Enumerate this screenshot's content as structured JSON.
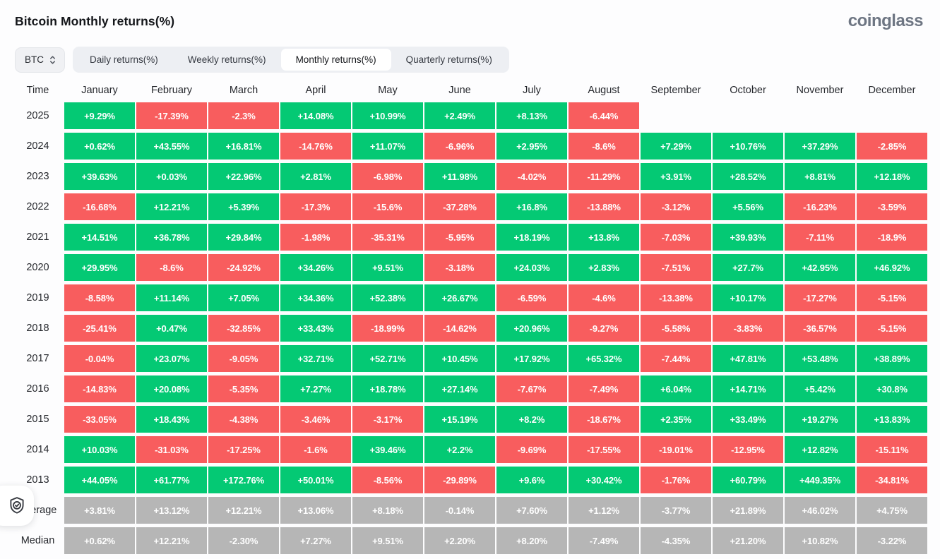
{
  "page": {
    "title": "Bitcoin Monthly returns(%)",
    "logo": "coinglass"
  },
  "toolbar": {
    "symbol_select": {
      "value": "BTC",
      "icon": "unfold-updown-chevron"
    },
    "tabs": [
      {
        "label": "Daily returns(%)",
        "active": false
      },
      {
        "label": "Weekly returns(%)",
        "active": false
      },
      {
        "label": "Monthly returns(%)",
        "active": true
      },
      {
        "label": "Quarterly returns(%)",
        "active": false
      }
    ]
  },
  "colors": {
    "positive": "#04c974",
    "negative": "#f85d5e",
    "neutral": "#b6b6b6"
  },
  "table": {
    "time_header": "Time",
    "months": [
      "January",
      "February",
      "March",
      "April",
      "May",
      "June",
      "July",
      "August",
      "September",
      "October",
      "November",
      "December"
    ],
    "rows": [
      {
        "label": "2025",
        "summary": false,
        "values": [
          "+9.29%",
          "-17.39%",
          "-2.3%",
          "+14.08%",
          "+10.99%",
          "+2.49%",
          "+8.13%",
          "-6.44%"
        ]
      },
      {
        "label": "2024",
        "summary": false,
        "values": [
          "+0.62%",
          "+43.55%",
          "+16.81%",
          "-14.76%",
          "+11.07%",
          "-6.96%",
          "+2.95%",
          "-8.6%",
          "+7.29%",
          "+10.76%",
          "+37.29%",
          "-2.85%"
        ]
      },
      {
        "label": "2023",
        "summary": false,
        "values": [
          "+39.63%",
          "+0.03%",
          "+22.96%",
          "+2.81%",
          "-6.98%",
          "+11.98%",
          "-4.02%",
          "-11.29%",
          "+3.91%",
          "+28.52%",
          "+8.81%",
          "+12.18%"
        ]
      },
      {
        "label": "2022",
        "summary": false,
        "values": [
          "-16.68%",
          "+12.21%",
          "+5.39%",
          "-17.3%",
          "-15.6%",
          "-37.28%",
          "+16.8%",
          "-13.88%",
          "-3.12%",
          "+5.56%",
          "-16.23%",
          "-3.59%"
        ]
      },
      {
        "label": "2021",
        "summary": false,
        "values": [
          "+14.51%",
          "+36.78%",
          "+29.84%",
          "-1.98%",
          "-35.31%",
          "-5.95%",
          "+18.19%",
          "+13.8%",
          "-7.03%",
          "+39.93%",
          "-7.11%",
          "-18.9%"
        ]
      },
      {
        "label": "2020",
        "summary": false,
        "values": [
          "+29.95%",
          "-8.6%",
          "-24.92%",
          "+34.26%",
          "+9.51%",
          "-3.18%",
          "+24.03%",
          "+2.83%",
          "-7.51%",
          "+27.7%",
          "+42.95%",
          "+46.92%"
        ]
      },
      {
        "label": "2019",
        "summary": false,
        "values": [
          "-8.58%",
          "+11.14%",
          "+7.05%",
          "+34.36%",
          "+52.38%",
          "+26.67%",
          "-6.59%",
          "-4.6%",
          "-13.38%",
          "+10.17%",
          "-17.27%",
          "-5.15%"
        ]
      },
      {
        "label": "2018",
        "summary": false,
        "values": [
          "-25.41%",
          "+0.47%",
          "-32.85%",
          "+33.43%",
          "-18.99%",
          "-14.62%",
          "+20.96%",
          "-9.27%",
          "-5.58%",
          "-3.83%",
          "-36.57%",
          "-5.15%"
        ]
      },
      {
        "label": "2017",
        "summary": false,
        "values": [
          "-0.04%",
          "+23.07%",
          "-9.05%",
          "+32.71%",
          "+52.71%",
          "+10.45%",
          "+17.92%",
          "+65.32%",
          "-7.44%",
          "+47.81%",
          "+53.48%",
          "+38.89%"
        ]
      },
      {
        "label": "2016",
        "summary": false,
        "values": [
          "-14.83%",
          "+20.08%",
          "-5.35%",
          "+7.27%",
          "+18.78%",
          "+27.14%",
          "-7.67%",
          "-7.49%",
          "+6.04%",
          "+14.71%",
          "+5.42%",
          "+30.8%"
        ]
      },
      {
        "label": "2015",
        "summary": false,
        "values": [
          "-33.05%",
          "+18.43%",
          "-4.38%",
          "-3.46%",
          "-3.17%",
          "+15.19%",
          "+8.2%",
          "-18.67%",
          "+2.35%",
          "+33.49%",
          "+19.27%",
          "+13.83%"
        ]
      },
      {
        "label": "2014",
        "summary": false,
        "values": [
          "+10.03%",
          "-31.03%",
          "-17.25%",
          "-1.6%",
          "+39.46%",
          "+2.2%",
          "-9.69%",
          "-17.55%",
          "-19.01%",
          "-12.95%",
          "+12.82%",
          "-15.11%"
        ]
      },
      {
        "label": "2013",
        "summary": false,
        "values": [
          "+44.05%",
          "+61.77%",
          "+172.76%",
          "+50.01%",
          "-8.56%",
          "-29.89%",
          "+9.6%",
          "+30.42%",
          "-1.76%",
          "+60.79%",
          "+449.35%",
          "-34.81%"
        ]
      },
      {
        "label": "Average",
        "summary": true,
        "values": [
          "+3.81%",
          "+13.12%",
          "+12.21%",
          "+13.06%",
          "+8.18%",
          "-0.14%",
          "+7.60%",
          "+1.12%",
          "-3.77%",
          "+21.89%",
          "+46.02%",
          "+4.75%"
        ]
      },
      {
        "label": "Median",
        "summary": true,
        "values": [
          "+0.62%",
          "+12.21%",
          "-2.30%",
          "+7.27%",
          "+9.51%",
          "+2.20%",
          "+8.20%",
          "-7.49%",
          "-4.35%",
          "+21.20%",
          "+10.82%",
          "-3.22%"
        ]
      }
    ]
  }
}
